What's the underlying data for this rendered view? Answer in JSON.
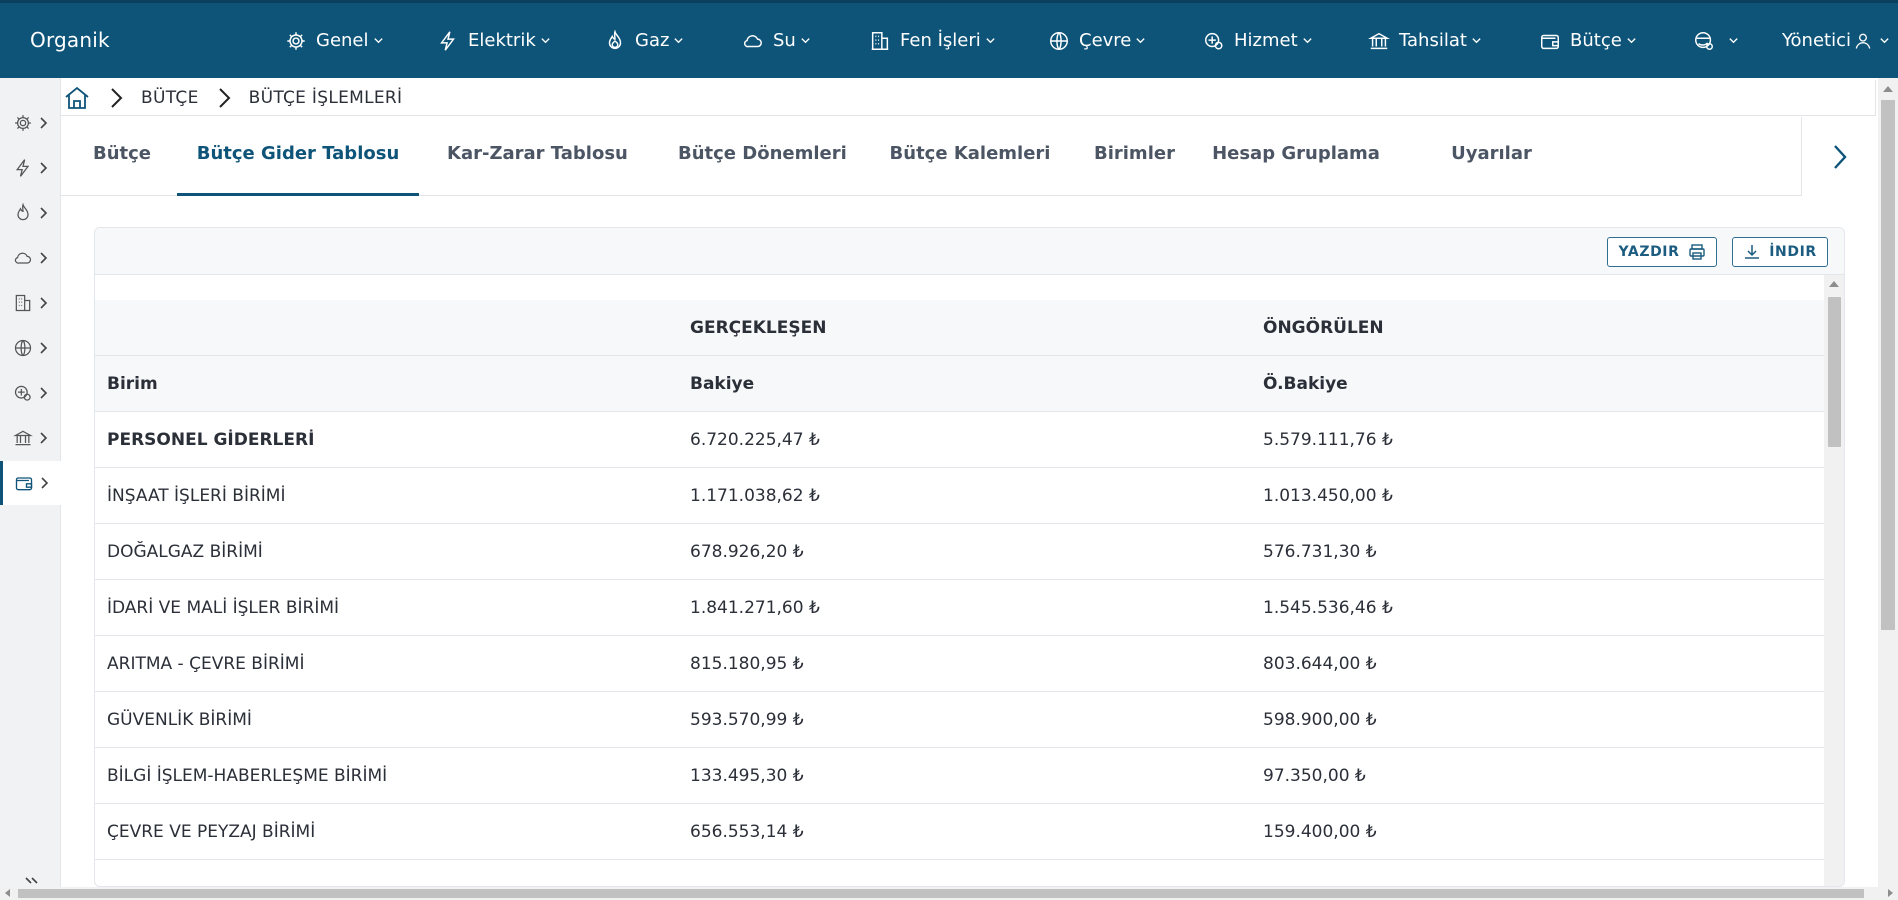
{
  "header": {
    "brand": "Organik",
    "menu": [
      {
        "label": "Genel",
        "icon": "gear-icon"
      },
      {
        "label": "Elektrik",
        "icon": "lightning-icon"
      },
      {
        "label": "Gaz",
        "icon": "flame-icon"
      },
      {
        "label": "Su",
        "icon": "cloud-icon"
      },
      {
        "label": "Fen İşleri",
        "icon": "building-icon"
      },
      {
        "label": "Çevre",
        "icon": "globe-icon"
      },
      {
        "label": "Hizmet",
        "icon": "service-icon"
      },
      {
        "label": "Tahsilat",
        "icon": "bank-icon"
      },
      {
        "label": "Bütçe",
        "icon": "wallet-icon"
      },
      {
        "label": "",
        "icon": "settings-globe-icon"
      }
    ],
    "user": {
      "label": "Yönetici",
      "icon": "user-icon"
    }
  },
  "sidebar": {
    "items": [
      {
        "icon": "gear-icon"
      },
      {
        "icon": "lightning-icon"
      },
      {
        "icon": "flame-icon"
      },
      {
        "icon": "cloud-icon"
      },
      {
        "icon": "building-icon"
      },
      {
        "icon": "globe-icon"
      },
      {
        "icon": "service-icon"
      },
      {
        "icon": "bank-icon"
      },
      {
        "icon": "wallet-icon"
      }
    ],
    "active_index": 8
  },
  "breadcrumb": {
    "items": [
      "BÜTÇE",
      "BÜTÇE İŞLEMLERİ"
    ]
  },
  "tabs": {
    "items": [
      "Bütçe",
      "Bütçe Gider Tablosu",
      "Kar-Zarar Tablosu",
      "Bütçe Dönemleri",
      "Bütçe Kalemleri",
      "Birimler",
      "Hesap Gruplama",
      "Uyarılar"
    ],
    "active_index": 1
  },
  "toolbar": {
    "print_label": "YAZDIR",
    "download_label": "İNDIR"
  },
  "table": {
    "group_headers": {
      "birim": "",
      "actual": "GERÇEKLEŞEN",
      "forecast": "ÖNGÖRÜLEN"
    },
    "columns": {
      "birim": "Birim",
      "balance": "Bakiye",
      "forecast_balance": "Ö.Bakiye"
    },
    "rows": [
      {
        "birim": "PERSONEL GİDERLERİ",
        "balance": "6.720.225,47 ₺",
        "forecast": "5.579.111,76 ₺",
        "bold": true
      },
      {
        "birim": "İNŞAAT İŞLERİ BİRİMİ",
        "balance": "1.171.038,62 ₺",
        "forecast": "1.013.450,00 ₺"
      },
      {
        "birim": "DOĞALGAZ BİRİMİ",
        "balance": "678.926,20 ₺",
        "forecast": "576.731,30 ₺"
      },
      {
        "birim": "İDARİ VE MALİ İŞLER BİRİMİ",
        "balance": "1.841.271,60 ₺",
        "forecast": "1.545.536,46 ₺"
      },
      {
        "birim": "ARITMA - ÇEVRE BİRİMİ",
        "balance": "815.180,95 ₺",
        "forecast": "803.644,00 ₺"
      },
      {
        "birim": "GÜVENLİK BİRİMİ",
        "balance": "593.570,99 ₺",
        "forecast": "598.900,00 ₺"
      },
      {
        "birim": "BİLGİ İŞLEM-HABERLEŞME BİRİMİ",
        "balance": "133.495,30 ₺",
        "forecast": "97.350,00 ₺"
      },
      {
        "birim": "ÇEVRE VE PEYZAJ BİRİMİ",
        "balance": "656.553,14 ₺",
        "forecast": "159.400,00 ₺"
      }
    ]
  },
  "colors": {
    "primary": "#0e5479",
    "accent_text": "#0e5479",
    "sidebar_bg": "#f1f2f4",
    "table_header_bg": "#f7f8fa"
  }
}
